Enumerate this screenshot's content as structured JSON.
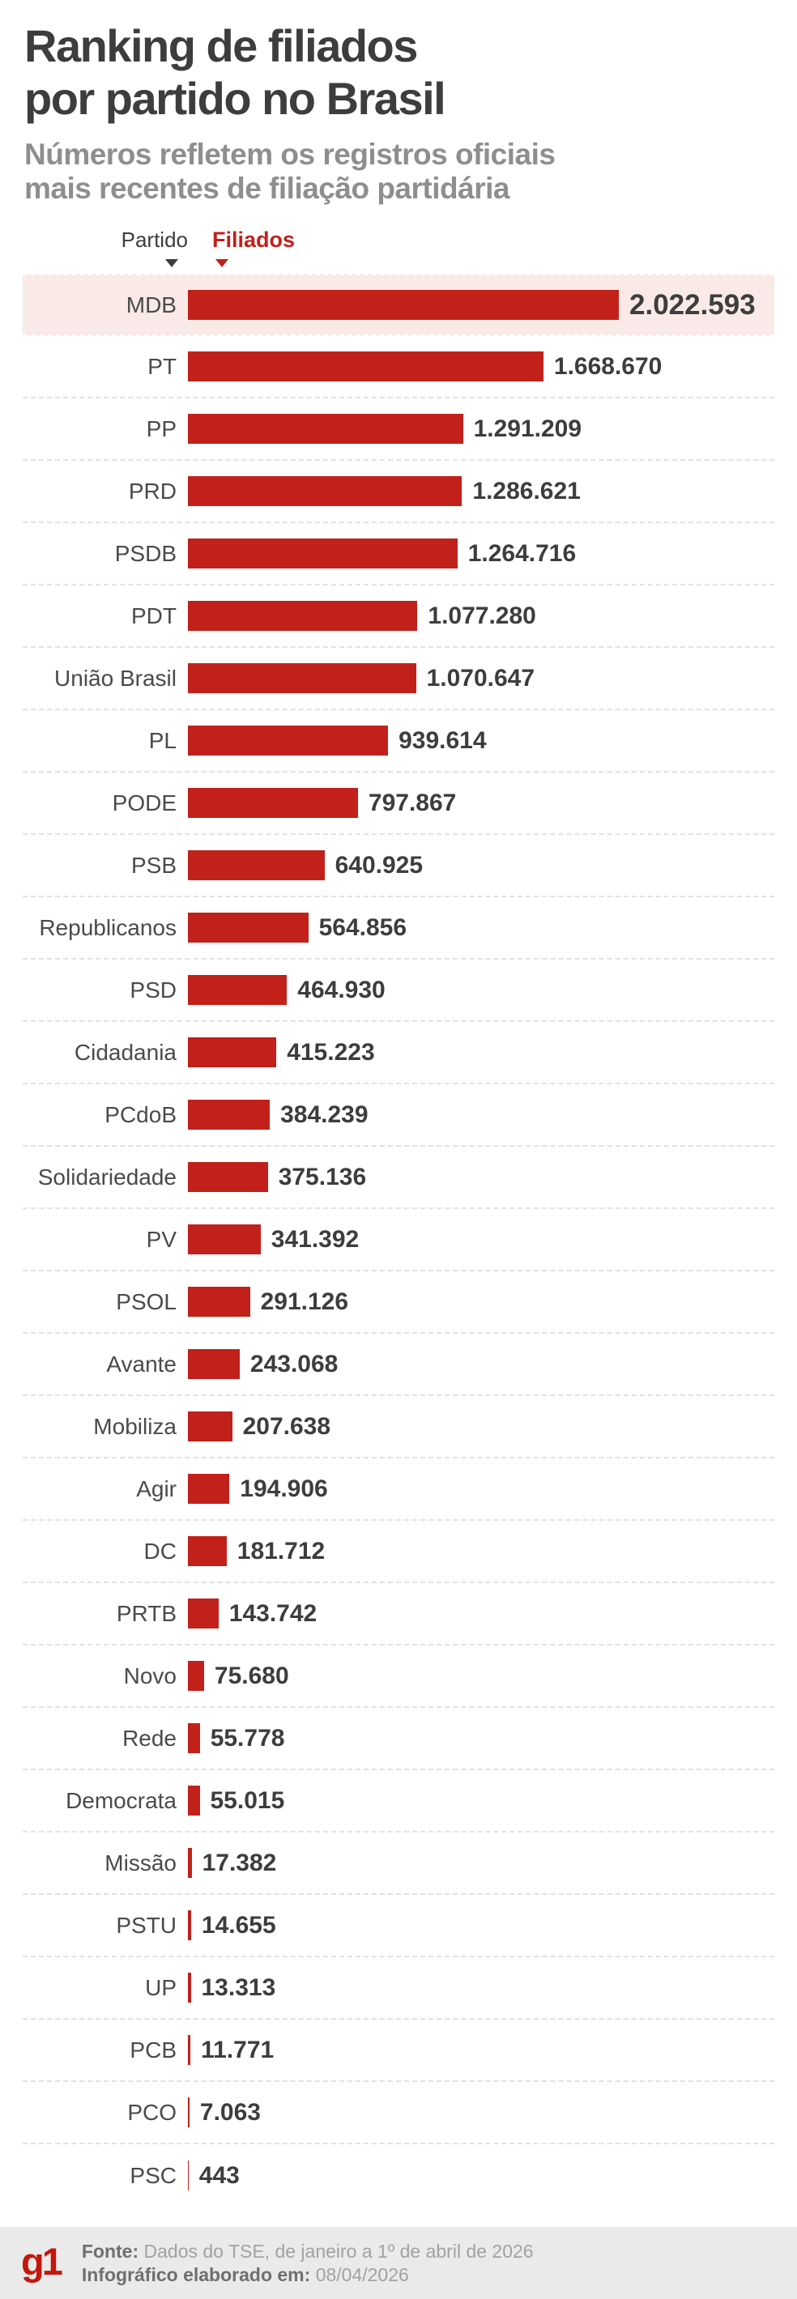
{
  "title": {
    "line1": "Ranking de filiados",
    "line2": "por partido no Brasil"
  },
  "subtitle": {
    "line1": "Números refletem os registros oficiais",
    "line2": "mais recentes de filiação partidária"
  },
  "table_header": {
    "party_label": "Partido",
    "members_label": "Filiados"
  },
  "footer": {
    "logo_text": "g1",
    "source_label": "Fonte:",
    "source_text": "Dados do TSE, de janeiro a 1º de abril de 2026",
    "elaborated_label": "Infográfico elaborado em:",
    "elaborated_date": "08/04/2026"
  },
  "colors": {
    "bar_red": "#c2201a",
    "logo_red": "#c4170c",
    "highlight_row_bg": "#f9e9e7",
    "title_gray": "#3d3d3d",
    "subtitle_gray": "#8e8e8e",
    "label_gray": "#4a4a4a",
    "value_gray": "#3d3d3d",
    "separator_gray": "#e2e2e2",
    "footer_bg": "#eaeaea",
    "footer_label_gray": "#6f6f6f",
    "footer_text_gray": "#a2a2a2"
  },
  "chart_data": {
    "type": "bar",
    "orientation": "horizontal",
    "title": "Ranking de filiados por partido no Brasil",
    "subtitle": "Números refletem os registros oficiais mais recentes de filiação partidária",
    "categories": [
      "MDB",
      "PT",
      "PP",
      "PRD",
      "PSDB",
      "PDT",
      "União Brasil",
      "PL",
      "PODE",
      "PSB",
      "Republicanos",
      "PSD",
      "Cidadania",
      "PCdoB",
      "Solidariedade",
      "PV",
      "PSOL",
      "Avante",
      "Mobiliza",
      "Agir",
      "DC",
      "PRTB",
      "Novo",
      "Rede",
      "Democrata",
      "Missão",
      "PSTU",
      "UP",
      "PCB",
      "PCO",
      "PSC"
    ],
    "values": [
      2022593,
      1668670,
      1291209,
      1286621,
      1264716,
      1077280,
      1070647,
      939614,
      797867,
      640925,
      564856,
      464930,
      415223,
      384239,
      375136,
      341392,
      291126,
      243068,
      207638,
      194906,
      181712,
      143742,
      75680,
      55778,
      55015,
      17382,
      14655,
      13313,
      11771,
      7063,
      443
    ],
    "value_labels": [
      "2.022.593",
      "1.668.670",
      "1.291.209",
      "1.286.621",
      "1.264.716",
      "1.077.280",
      "1.070.647",
      "939.614",
      "797.867",
      "640.925",
      "564.856",
      "464.930",
      "415.223",
      "384.239",
      "375.136",
      "341.392",
      "291.126",
      "243.068",
      "207.638",
      "194.906",
      "181.712",
      "143.742",
      "75.680",
      "55.778",
      "55.015",
      "17.382",
      "14.655",
      "13.313",
      "11.771",
      "7.063",
      "443"
    ],
    "highlighted_category": "MDB",
    "sort": "descending",
    "xlim": [
      0,
      2022593
    ],
    "gridlines": false,
    "legend": false
  }
}
